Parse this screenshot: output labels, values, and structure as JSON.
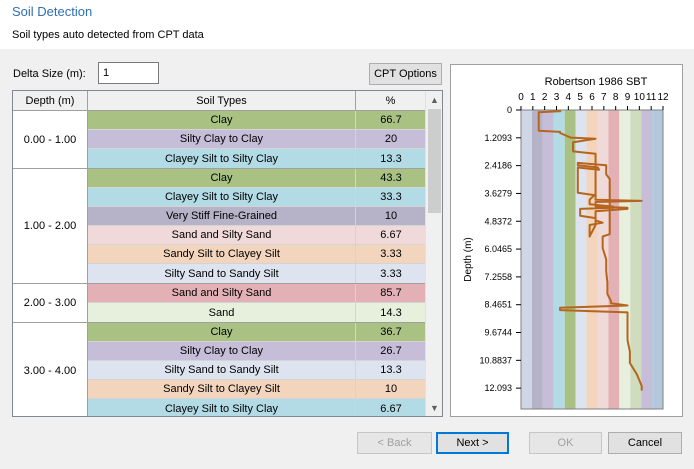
{
  "header": {
    "title": "Soil Detection",
    "subtitle": "Soil types auto detected from CPT data"
  },
  "delta": {
    "label": "Delta Size (m):",
    "value": "1"
  },
  "cpt_options_label": "CPT Options",
  "table": {
    "columns": [
      "Depth (m)",
      "Soil Types",
      "%"
    ],
    "groups": [
      {
        "depth": "0.00 - 1.00",
        "rows": [
          {
            "type": "Clay",
            "pct": "66.7",
            "color": "#a9c283"
          },
          {
            "type": "Silty Clay to Clay",
            "pct": "20",
            "color": "#c6bed9"
          },
          {
            "type": "Clayey Silt to Silty Clay",
            "pct": "13.3",
            "color": "#b3dbe6"
          }
        ]
      },
      {
        "depth": "1.00 - 2.00",
        "rows": [
          {
            "type": "Clay",
            "pct": "43.3",
            "color": "#a9c283"
          },
          {
            "type": "Clayey Silt to Silty Clay",
            "pct": "33.3",
            "color": "#b3dbe6"
          },
          {
            "type": "Very Stiff Fine-Grained",
            "pct": "10",
            "color": "#b6b2c8"
          },
          {
            "type": "Sand and Silty Sand",
            "pct": "6.67",
            "color": "#f0d9d9"
          },
          {
            "type": "Sandy Silt to Clayey Silt",
            "pct": "3.33",
            "color": "#f3d5bd"
          },
          {
            "type": "Silty Sand to Sandy Silt",
            "pct": "3.33",
            "color": "#dde3ef"
          }
        ]
      },
      {
        "depth": "2.00 - 3.00",
        "rows": [
          {
            "type": "Sand and Silty Sand",
            "pct": "85.7",
            "color": "#e3b1b5"
          },
          {
            "type": "Sand",
            "pct": "14.3",
            "color": "#e6f0dc"
          }
        ]
      },
      {
        "depth": "3.00 - 4.00",
        "rows": [
          {
            "type": "Clay",
            "pct": "36.7",
            "color": "#a9c283"
          },
          {
            "type": "Silty Clay to Clay",
            "pct": "26.7",
            "color": "#c6bed9"
          },
          {
            "type": "Silty Sand to Sandy Silt",
            "pct": "13.3",
            "color": "#dde3ef"
          },
          {
            "type": "Sandy Silt to Clayey Silt",
            "pct": "10",
            "color": "#f3d5bd"
          },
          {
            "type": "Clayey Silt to Silty Clay",
            "pct": "6.67",
            "color": "#b3dbe6"
          }
        ]
      }
    ]
  },
  "chart_data": {
    "type": "line",
    "title": "Robertson 1986 SBT",
    "xlabel": "",
    "ylabel": "Depth (m)",
    "x_ticks": [
      "0",
      "1",
      "2",
      "3",
      "4",
      "5",
      "6",
      "7",
      "8",
      "9",
      "10",
      "11",
      "12"
    ],
    "y_ticks": [
      "0",
      "1.2093",
      "2.4186",
      "3.6279",
      "4.8372",
      "6.0465",
      "7.2558",
      "8.4651",
      "9.6744",
      "10.8837",
      "12.093"
    ],
    "xlim": [
      0,
      12
    ],
    "ylim": [
      0,
      13
    ],
    "band_colors": [
      "#cfd6e6",
      "#b6b2c8",
      "#c6bed9",
      "#b3dbe6",
      "#a9c283",
      "#dde3ef",
      "#f3d5bd",
      "#f0d9d9",
      "#e3b1b5",
      "#e6f0dc",
      "#d0dcbe",
      "#c6bed9",
      "#b3c8dc"
    ],
    "line_color": "#b5651d",
    "series": [
      {
        "x": [
          3.4,
          1.5,
          1.5,
          3.3,
          3.3,
          4.2,
          6.3,
          4.4,
          4.4,
          6.3,
          6.3,
          10.2,
          6.3,
          6.3,
          9.0,
          9.0,
          6.3,
          6.3,
          5.8,
          5.8,
          6.9,
          6.3,
          6.3,
          5.0,
          5.0,
          7.8,
          7.8,
          5.8,
          5.8,
          6.2,
          4.8,
          4.8,
          6.6,
          6.5,
          4.8,
          4.8,
          7.2,
          7.2,
          7.5,
          7.5,
          7.5,
          6.9,
          6.9,
          7.2,
          7.2,
          7.3,
          7.3,
          7.6,
          7.6,
          9.0,
          3.3,
          3.3,
          9.0,
          9.0,
          9.0,
          9.2,
          9.2,
          9.8,
          10.2,
          10.2
        ],
        "y": [
          0.05,
          0.1,
          0.9,
          0.95,
          1.0,
          1.2,
          1.25,
          1.4,
          1.8,
          1.9,
          3.9,
          3.95,
          4.0,
          4.2,
          4.25,
          4.3,
          4.4,
          5.0,
          5.5,
          5.0,
          4.9,
          4.8,
          4.7,
          4.6,
          4.3,
          4.25,
          4.2,
          4.1,
          3.9,
          3.7,
          3.6,
          2.5,
          2.6,
          2.5,
          2.4,
          2.3,
          2.4,
          2.8,
          3.0,
          5.2,
          5.4,
          5.5,
          6.0,
          6.5,
          7.0,
          7.5,
          8.0,
          8.3,
          8.4,
          8.5,
          8.6,
          8.7,
          8.8,
          9.0,
          10.0,
          10.5,
          11.0,
          11.5,
          12.0,
          12.2
        ]
      }
    ]
  },
  "buttons": {
    "back": "< Back",
    "next": "Next >",
    "ok": "OK",
    "cancel": "Cancel"
  }
}
